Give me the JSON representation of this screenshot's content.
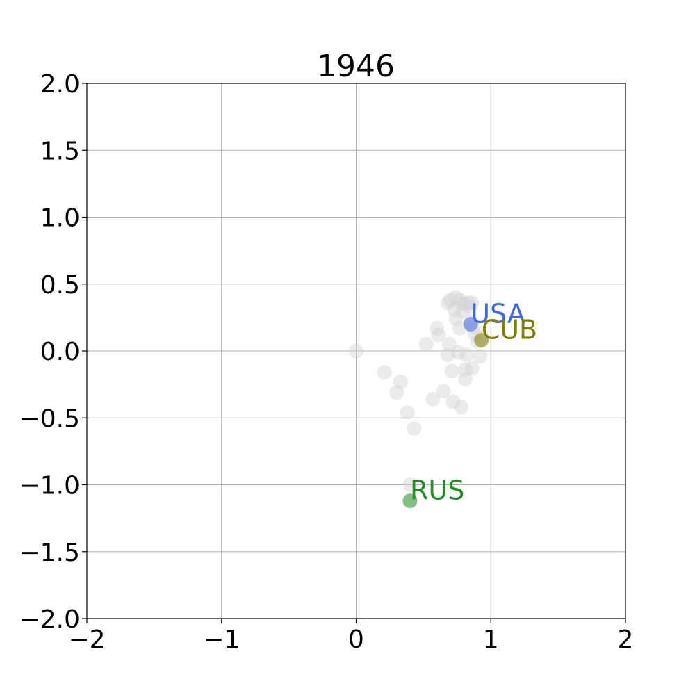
{
  "chart_data": {
    "type": "scatter",
    "title": "1946",
    "xlabel": "",
    "ylabel": "",
    "xlim": [
      -2,
      2
    ],
    "ylim": [
      -2,
      2
    ],
    "x_ticks": [
      -2,
      -1,
      0,
      1,
      2
    ],
    "x_tick_labels": [
      "−2",
      "−1",
      "0",
      "1",
      "2"
    ],
    "y_ticks": [
      2,
      1.5,
      1,
      0.5,
      0,
      -0.5,
      -1,
      -1.5,
      -2
    ],
    "y_tick_labels": [
      "2.0",
      "1.5",
      "1.0",
      "0.5",
      "0.0",
      "−0.5",
      "−1.0",
      "−1.5",
      "−2.0"
    ],
    "grid": true,
    "background_points": {
      "color": "#d3d3d3",
      "points": [
        [
          0.0,
          0.0
        ],
        [
          0.21,
          -0.16
        ],
        [
          0.33,
          -0.23
        ],
        [
          0.3,
          -0.31
        ],
        [
          0.38,
          -0.46
        ],
        [
          0.43,
          -0.58
        ],
        [
          0.52,
          0.05
        ],
        [
          0.57,
          -0.36
        ],
        [
          0.6,
          0.17
        ],
        [
          0.61,
          0.12
        ],
        [
          0.65,
          -0.3
        ],
        [
          0.68,
          0.36
        ],
        [
          0.69,
          0.05
        ],
        [
          0.68,
          -0.03
        ],
        [
          0.7,
          0.38
        ],
        [
          0.71,
          -0.15
        ],
        [
          0.72,
          -0.38
        ],
        [
          0.74,
          0.4
        ],
        [
          0.73,
          0.31
        ],
        [
          0.74,
          0.24
        ],
        [
          0.76,
          -0.01
        ],
        [
          0.77,
          0.38
        ],
        [
          0.77,
          0.17
        ],
        [
          0.78,
          -0.42
        ],
        [
          0.79,
          0.3
        ],
        [
          0.8,
          0.35
        ],
        [
          0.81,
          -0.21
        ],
        [
          0.81,
          -0.14
        ],
        [
          0.82,
          -0.03
        ],
        [
          0.83,
          0.36
        ],
        [
          0.84,
          0.33
        ],
        [
          0.85,
          0.22
        ],
        [
          0.86,
          -0.13
        ],
        [
          0.87,
          0.18
        ],
        [
          0.88,
          0.13
        ],
        [
          0.86,
          0.36
        ],
        [
          0.9,
          0.07
        ],
        [
          0.92,
          -0.04
        ],
        [
          0.93,
          0.1
        ],
        [
          0.4,
          -1.0
        ]
      ]
    },
    "highlighted": [
      {
        "label": "USA",
        "x": 0.85,
        "y": 0.2,
        "color": "#4169e1"
      },
      {
        "label": "CUB",
        "x": 0.93,
        "y": 0.08,
        "color": "#808000"
      },
      {
        "label": "RUS",
        "x": 0.4,
        "y": -1.12,
        "color": "#228b22"
      }
    ]
  }
}
